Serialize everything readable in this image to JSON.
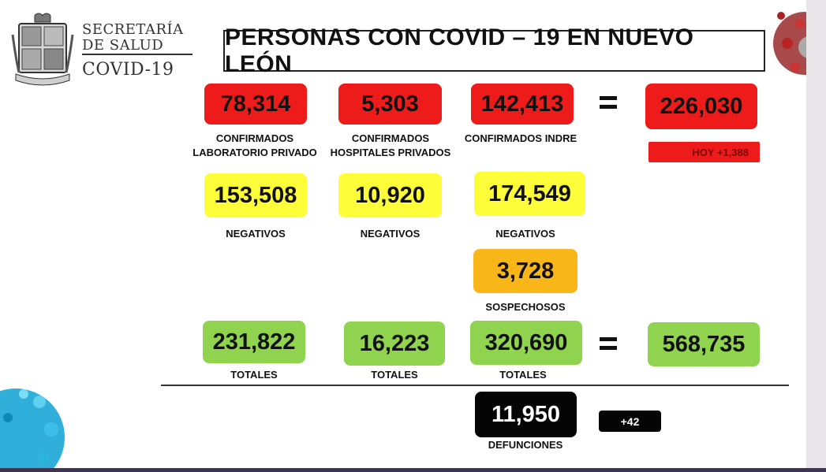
{
  "header": {
    "agency_line1": "SECRETARÍA",
    "agency_line2": "DE SALUD",
    "agency_line3": "COVID-19",
    "title": "PERSONAS CON COVID – 19 EN NUEVO LEÓN"
  },
  "confirmed": {
    "lab_privado": "78,314",
    "hosp_privados": "5,303",
    "indre": "142,413",
    "total": "226,030",
    "lab_privado_label_1": "CONFIRMADOS",
    "lab_privado_label_2": "LABORATORIO PRIVADO",
    "hosp_privados_label_1": "CONFIRMADOS",
    "hosp_privados_label_2": "HOSPITALES PRIVADOS",
    "indre_label": "CONFIRMADOS INDRE",
    "today": "HOY +1,388"
  },
  "negative": {
    "lab_privado": "153,508",
    "hosp_privados": "10,920",
    "indre": "174,549",
    "label": "NEGATIVOS"
  },
  "suspected": {
    "value": "3,728",
    "label": "SOSPECHOSOS"
  },
  "totals": {
    "lab_privado": "231,822",
    "hosp_privados": "16,223",
    "indre": "320,690",
    "grand_total": "568,735",
    "label": "TOTALES"
  },
  "deaths": {
    "value": "11,950",
    "label": "DEFUNCIONES",
    "today": "+42"
  },
  "colors": {
    "confirmed": "#ee1b1b",
    "negative": "#fdfd3a",
    "suspected": "#f8b618",
    "totals": "#8fd34f",
    "deaths": "#050505"
  }
}
